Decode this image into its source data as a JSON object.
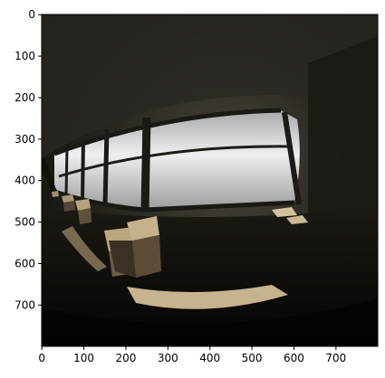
{
  "figure": {
    "kind": "image-plot",
    "subject": "fisheye-view-dim-room-with-large-window-and-sunlit-boxes",
    "x_axis": {
      "min": 0,
      "max": 799,
      "ticks": [
        0,
        100,
        200,
        300,
        400,
        500,
        600,
        700
      ]
    },
    "y_axis": {
      "min": 0,
      "max": 799,
      "inverted": true,
      "ticks": [
        0,
        100,
        200,
        300,
        400,
        500,
        600,
        700
      ]
    },
    "colors": {
      "background": "#ffffff",
      "dark_room": "#141210",
      "window_glow": "#d9d9d9",
      "sunlight": "#c7b48f",
      "box_side": "#6d5c44"
    }
  }
}
